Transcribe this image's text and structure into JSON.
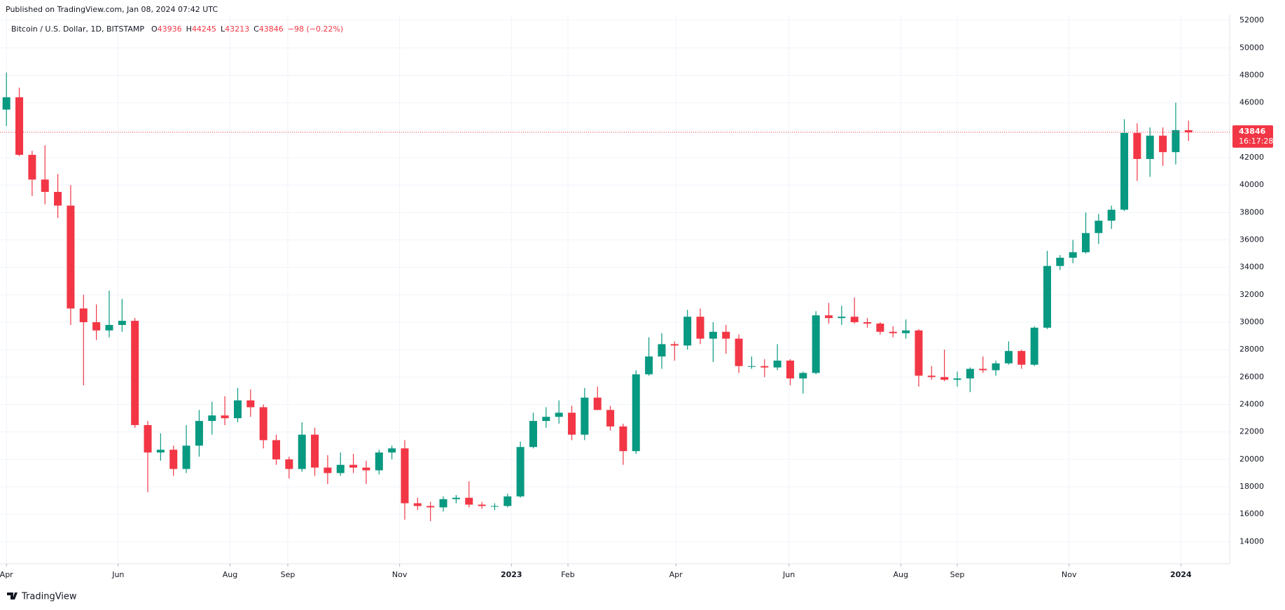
{
  "header": "Published on TradingView.com, Jan 08, 2024 07:42 UTC",
  "footer": "TradingView",
  "chart_data": {
    "type": "candlestick",
    "legend": {
      "symbol": "Bitcoin / U.S. Dollar, 1D, BITSTAMP",
      "ohlc": [
        {
          "label": "O",
          "value": "43936"
        },
        {
          "label": "H",
          "value": "44245"
        },
        {
          "label": "L",
          "value": "43213"
        },
        {
          "label": "C",
          "value": "43846"
        }
      ],
      "change": "−98 (−0.22%)"
    },
    "last_price": 43846,
    "countdown": "16:17:28",
    "up_color": "#089981",
    "down_color": "#f23645",
    "grid": true,
    "xlim": [
      -0.5,
      95.2
    ],
    "xticks": [
      {
        "value": 0,
        "label": "Apr"
      },
      {
        "value": 8.7,
        "label": "Jun"
      },
      {
        "value": 17.4,
        "label": "Aug"
      },
      {
        "value": 21.9,
        "label": "Sep"
      },
      {
        "value": 30.6,
        "label": "Nov"
      },
      {
        "value": 39.3,
        "label": "2023"
      },
      {
        "value": 43.7,
        "label": "Feb"
      },
      {
        "value": 52.1,
        "label": "Apr"
      },
      {
        "value": 60.9,
        "label": "Jun"
      },
      {
        "value": 69.6,
        "label": "Aug"
      },
      {
        "value": 74,
        "label": "Sep"
      },
      {
        "value": 82.7,
        "label": "Nov"
      },
      {
        "value": 91.4,
        "label": "2024"
      }
    ],
    "ylim": [
      12387,
      52418
    ],
    "yticks": [
      14000,
      16000,
      18000,
      20000,
      22000,
      24000,
      26000,
      28000,
      30000,
      32000,
      34000,
      36000,
      38000,
      40000,
      42000,
      44000,
      46000,
      48000,
      50000,
      52000
    ],
    "open": [
      45500,
      46400,
      42200,
      40400,
      39500,
      38500,
      31000,
      30000,
      29400,
      29800,
      30100,
      22500,
      20500,
      20700,
      19300,
      21000,
      22800,
      23200,
      23000,
      24300,
      23800,
      21400,
      20000,
      19300,
      21800,
      19400,
      19000,
      19600,
      19400,
      19200,
      20500,
      20800,
      16800,
      16600,
      16500,
      17100,
      17200,
      16700,
      16600,
      16600,
      17300,
      20900,
      22800,
      23100,
      23400,
      21800,
      24500,
      23600,
      22400,
      20600,
      26200,
      27500,
      28400,
      28300,
      30400,
      28800,
      29300,
      28800,
      26800,
      26800,
      26700,
      27200,
      25900,
      26300,
      30500,
      30300,
      30400,
      30000,
      29900,
      29300,
      29200,
      29400,
      26100,
      26000,
      25800,
      25900,
      26600,
      26500,
      27000,
      27900,
      26900,
      29600,
      34100,
      34700,
      35100,
      36500,
      37400,
      38200,
      43800,
      41900,
      43600,
      42400,
      44000
    ],
    "high": [
      48200,
      47100,
      42500,
      42900,
      40800,
      40000,
      32000,
      31300,
      32300,
      31700,
      30300,
      22800,
      21900,
      21000,
      22500,
      23600,
      24200,
      24600,
      25200,
      25100,
      24000,
      21800,
      20200,
      22700,
      22300,
      20300,
      20500,
      20400,
      19900,
      20700,
      21000,
      21400,
      17200,
      16900,
      17300,
      17400,
      18400,
      16900,
      16800,
      17500,
      21300,
      23400,
      23800,
      24300,
      23900,
      25200,
      25300,
      23900,
      22600,
      26500,
      28900,
      29200,
      28600,
      30900,
      31000,
      30000,
      29800,
      29100,
      27500,
      27300,
      28400,
      27300,
      26400,
      30800,
      31400,
      31200,
      31800,
      30300,
      30000,
      29700,
      30200,
      29500,
      26800,
      28000,
      26400,
      26700,
      27500,
      27200,
      28600,
      28000,
      29700,
      35200,
      34900,
      36000,
      38000,
      37900,
      38500,
      44800,
      44500,
      44200,
      44200,
      46000,
      44700
    ],
    "low": [
      44300,
      42100,
      39200,
      38600,
      37600,
      29800,
      25400,
      28700,
      28900,
      29300,
      22300,
      17600,
      19900,
      18800,
      19000,
      20200,
      21800,
      22500,
      22700,
      23100,
      20800,
      19600,
      18600,
      19100,
      18800,
      18200,
      18800,
      19000,
      18200,
      18900,
      20000,
      15600,
      16300,
      15500,
      16200,
      16800,
      16500,
      16400,
      16300,
      16500,
      17200,
      20800,
      22300,
      22600,
      21400,
      21400,
      23600,
      22100,
      19600,
      20400,
      26100,
      26600,
      27200,
      28000,
      28400,
      27100,
      27700,
      26300,
      26600,
      26000,
      26500,
      25400,
      24800,
      26200,
      29900,
      29800,
      29900,
      29600,
      29100,
      28900,
      28800,
      25300,
      25800,
      25700,
      25300,
      24900,
      26300,
      26100,
      26900,
      26600,
      26800,
      29500,
      33800,
      34300,
      35000,
      35700,
      36800,
      38100,
      40300,
      40600,
      41400,
      41500,
      43213
    ],
    "close": [
      46400,
      42200,
      40400,
      39500,
      38500,
      31000,
      30000,
      29400,
      29800,
      30100,
      22500,
      20500,
      20700,
      19300,
      21000,
      22800,
      23200,
      23000,
      24300,
      23800,
      21400,
      20000,
      19300,
      21800,
      19400,
      19000,
      19600,
      19400,
      19200,
      20500,
      20800,
      16800,
      16600,
      16500,
      17100,
      17200,
      16700,
      16600,
      16600,
      17300,
      20900,
      22800,
      23100,
      23400,
      21800,
      24500,
      23600,
      22400,
      20600,
      26200,
      27500,
      28400,
      28300,
      30400,
      28800,
      29300,
      28800,
      26800,
      26800,
      26700,
      27200,
      25900,
      26300,
      30500,
      30300,
      30400,
      30000,
      29900,
      29300,
      29200,
      29400,
      26100,
      26000,
      25800,
      25900,
      26600,
      26500,
      27000,
      27900,
      26900,
      29600,
      34100,
      34700,
      35100,
      36500,
      37400,
      38200,
      43800,
      41900,
      43600,
      42400,
      44000,
      43846
    ]
  }
}
